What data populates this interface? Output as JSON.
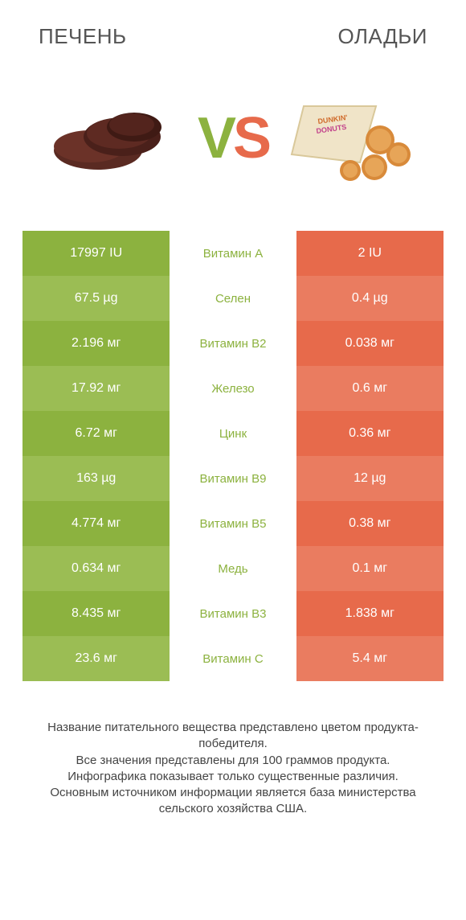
{
  "header": {
    "left_title": "ПЕЧЕНЬ",
    "right_title": "ОЛАДЬИ"
  },
  "colors": {
    "green_dark": "#8cb23f",
    "green_light": "#9bbd54",
    "orange_dark": "#e76a4b",
    "orange_light": "#ea7c60",
    "text": "#333333"
  },
  "vs": {
    "v": "V",
    "s": "S"
  },
  "rows": [
    {
      "left": "17997 IU",
      "label": "Витамин A",
      "right": "2 IU",
      "winner": "left"
    },
    {
      "left": "67.5 µg",
      "label": "Селен",
      "right": "0.4 µg",
      "winner": "left"
    },
    {
      "left": "2.196 мг",
      "label": "Витамин B2",
      "right": "0.038 мг",
      "winner": "left"
    },
    {
      "left": "17.92 мг",
      "label": "Железо",
      "right": "0.6 мг",
      "winner": "left"
    },
    {
      "left": "6.72 мг",
      "label": "Цинк",
      "right": "0.36 мг",
      "winner": "left"
    },
    {
      "left": "163 µg",
      "label": "Витамин B9",
      "right": "12 µg",
      "winner": "left"
    },
    {
      "left": "4.774 мг",
      "label": "Витамин B5",
      "right": "0.38 мг",
      "winner": "left"
    },
    {
      "left": "0.634 мг",
      "label": "Медь",
      "right": "0.1 мг",
      "winner": "left"
    },
    {
      "left": "8.435 мг",
      "label": "Витамин B3",
      "right": "1.838 мг",
      "winner": "left"
    },
    {
      "left": "23.6 мг",
      "label": "Витамин C",
      "right": "5.4 мг",
      "winner": "left"
    }
  ],
  "footer": {
    "line1": "Название питательного вещества представлено цветом продукта-победителя.",
    "line2": "Все значения представлены для 100 граммов продукта.",
    "line3": "Инфографика показывает только существенные различия.",
    "line4": "Основным источником информации является база министерства сельского хозяйства США."
  }
}
